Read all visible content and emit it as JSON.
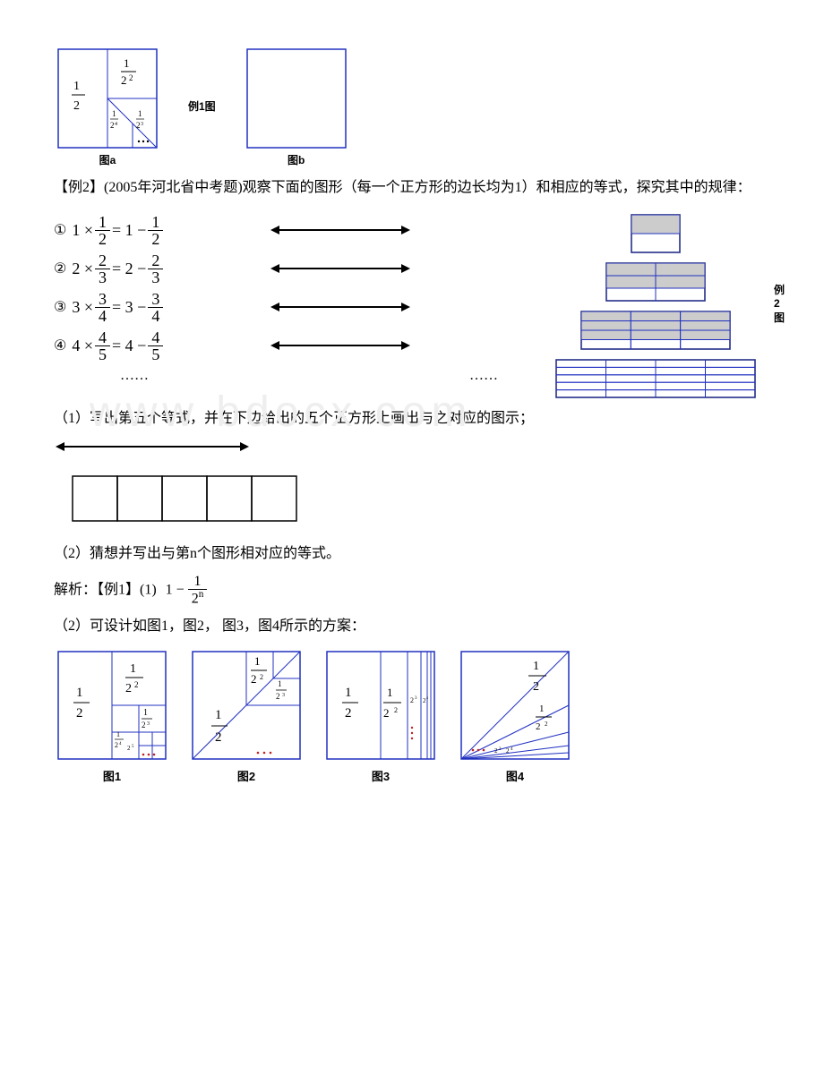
{
  "top_figures": {
    "figA_label": "例1图",
    "figA_caption": "图a",
    "figB_caption": "图b",
    "box_stroke": "#2030c0",
    "fractions": {
      "half": {
        "num": "1",
        "den": "2"
      },
      "quarter": {
        "num": "1",
        "den": "2",
        "exp": "2"
      },
      "eighth": {
        "num": "1",
        "den": "2",
        "exp": "3"
      },
      "sixteenth": {
        "num": "1",
        "den": "2",
        "exp": "4"
      }
    }
  },
  "example2_intro": "【例2】(2005年河北省中考题)观察下面的图形（每一个正方形的边长均为1）和相应的等式，探究其中的规律：",
  "example2_side_label": "例2图",
  "equations": [
    {
      "circled": "①",
      "a": "1",
      "n": "1",
      "d": "2"
    },
    {
      "circled": "②",
      "a": "2",
      "n": "2",
      "d": "3"
    },
    {
      "circled": "③",
      "a": "3",
      "n": "3",
      "d": "4"
    },
    {
      "circled": "④",
      "a": "4",
      "n": "4",
      "d": "5"
    }
  ],
  "ellipsis": "……",
  "q1": "（1）写出第五个等式，并在下边给出的五个正方形上画出与之对应的图示；",
  "q2": "（2）猜想并写出与第n个图形相对应的等式。",
  "analysis_prefix": "解析：【例1】(1)",
  "analysis_formula": {
    "one": "1",
    "num": "1",
    "den_base": "2",
    "den_exp": "n"
  },
  "analysis_q2": "（2）可设计如图1，图2， 图3，图4所示的方案：",
  "bottom_figs": {
    "labels": [
      "图1",
      "图2",
      "图3",
      "图4"
    ],
    "stroke": "#2030c0",
    "dot_color": "#c02020"
  },
  "grids": {
    "fill_gray": "#cccccc",
    "stroke": "#2030c0",
    "border": "#000000"
  },
  "five_squares": {
    "count": 5,
    "stroke": "#000000"
  },
  "arrow": {
    "stroke": "#000000",
    "head": 8,
    "length": 160
  }
}
